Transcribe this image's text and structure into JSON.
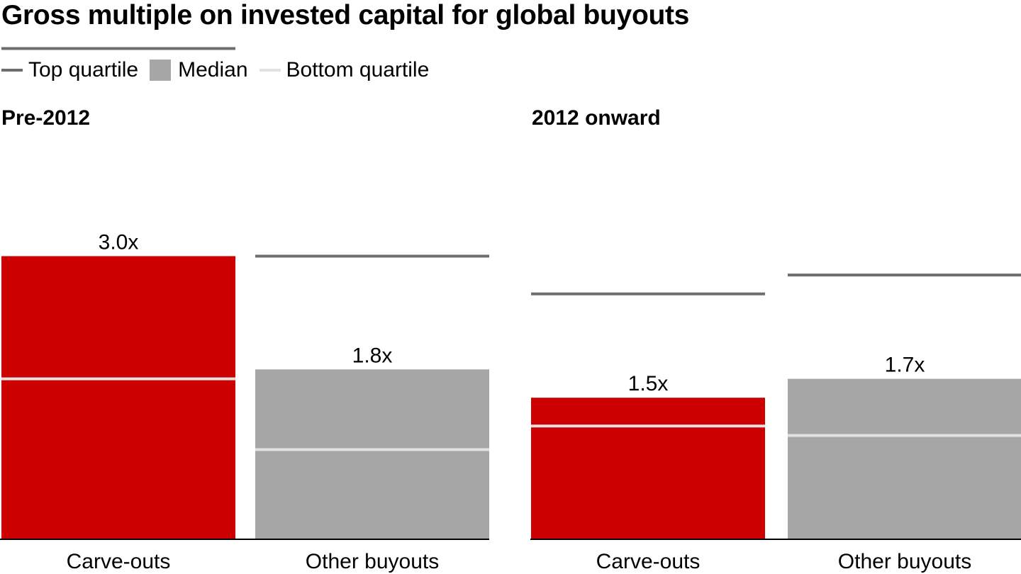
{
  "title": "Gross multiple on invested capital for global buyouts",
  "legend": {
    "top": "Top quartile",
    "median": "Median",
    "bottom": "Bottom quartile"
  },
  "colors": {
    "carve_outs": "#cc0000",
    "other_buyouts": "#a6a6a6",
    "top_quartile": "#6e6e6e",
    "bottom_quartile": "#e2e2e2",
    "baseline": "#000000"
  },
  "chart_data": {
    "type": "bar",
    "y_range": [
      0,
      4.4
    ],
    "panels": [
      {
        "title": "Pre-2012",
        "categories": [
          "Carve-outs",
          "Other buyouts"
        ],
        "median": [
          3.0,
          1.8
        ],
        "median_labels": [
          "3.0x",
          "1.8x"
        ],
        "top_quartile": [
          5.2,
          3.0
        ],
        "bottom_quartile": [
          1.7,
          0.95
        ]
      },
      {
        "title": "2012 onward",
        "categories": [
          "Carve-outs",
          "Other buyouts"
        ],
        "median": [
          1.5,
          1.7
        ],
        "median_labels": [
          "1.5x",
          "1.7x"
        ],
        "top_quartile": [
          2.6,
          2.8
        ],
        "bottom_quartile": [
          1.2,
          1.1
        ]
      }
    ]
  }
}
